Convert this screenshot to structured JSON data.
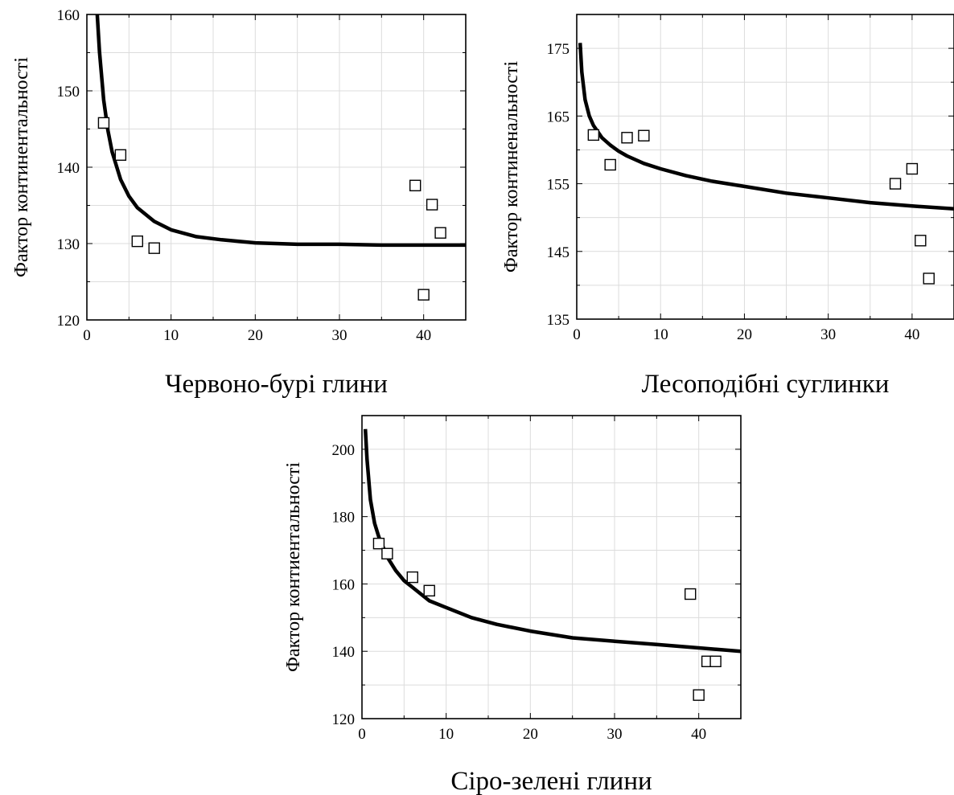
{
  "chart_data": [
    {
      "type": "scatter",
      "xlabel": "Червоно-бурі глини",
      "ylabel": "Фактор континентальності",
      "xlim": [
        0,
        45
      ],
      "ylim": [
        120,
        160
      ],
      "xticks": [
        0,
        10,
        20,
        30,
        40
      ],
      "yticks": [
        120,
        130,
        140,
        150,
        160
      ],
      "grid": true,
      "points": {
        "x": [
          2,
          4,
          6,
          8,
          39,
          41,
          42,
          40
        ],
        "y": [
          145.8,
          141.6,
          130.3,
          129.4,
          137.6,
          135.1,
          131.4,
          123.3
        ]
      },
      "fit": {
        "x": [
          1.2,
          1.5,
          2,
          2.5,
          3,
          4,
          5,
          6,
          8,
          10,
          13,
          16,
          20,
          25,
          30,
          35,
          40,
          45
        ],
        "y": [
          160.5,
          155.1,
          148.8,
          144.8,
          142.0,
          138.4,
          136.2,
          134.7,
          132.9,
          131.8,
          130.9,
          130.5,
          130.1,
          129.9,
          129.9,
          129.8,
          129.8,
          129.8
        ]
      }
    },
    {
      "type": "scatter",
      "xlabel": "Лесоподібні суглинки",
      "ylabel": "Фактор континенальності",
      "xlim": [
        0,
        45
      ],
      "ylim": [
        135,
        180
      ],
      "xticks": [
        0,
        10,
        20,
        30,
        40
      ],
      "yticks": [
        135,
        145,
        155,
        165,
        175
      ],
      "grid": true,
      "points": {
        "x": [
          2,
          4,
          6,
          8,
          38,
          40,
          41,
          42
        ],
        "y": [
          162.2,
          157.8,
          161.8,
          162.1,
          155.0,
          157.2,
          146.6,
          141.0
        ]
      },
      "fit": {
        "x": [
          0.4,
          0.6,
          1,
          1.5,
          2,
          3,
          4,
          5,
          6,
          8,
          10,
          13,
          16,
          20,
          25,
          30,
          35,
          40,
          45
        ],
        "y": [
          175.8,
          171.5,
          167.4,
          165.0,
          163.6,
          161.8,
          160.7,
          159.8,
          159.1,
          158.0,
          157.2,
          156.2,
          155.4,
          154.6,
          153.6,
          152.9,
          152.2,
          151.7,
          151.3
        ]
      }
    },
    {
      "type": "scatter",
      "xlabel": "Сіро-зелені глини",
      "ylabel": "Фактор контиентальності",
      "xlim": [
        0,
        45
      ],
      "ylim": [
        120,
        210
      ],
      "xticks": [
        0,
        10,
        20,
        30,
        40
      ],
      "yticks": [
        120,
        140,
        160,
        180,
        200
      ],
      "grid": true,
      "points": {
        "x": [
          2,
          3,
          6,
          8,
          39,
          40,
          41,
          42
        ],
        "y": [
          172,
          169,
          162,
          158,
          157,
          127,
          137,
          137
        ]
      },
      "fit": {
        "x": [
          0.4,
          0.6,
          1,
          1.5,
          2,
          3,
          4,
          5,
          6,
          8,
          10,
          13,
          16,
          20,
          25,
          30,
          35,
          40,
          45
        ],
        "y": [
          206,
          197,
          185,
          178,
          174,
          168,
          164,
          161,
          159,
          155,
          153,
          150,
          148,
          146,
          144,
          143,
          142,
          141,
          140
        ]
      }
    }
  ]
}
